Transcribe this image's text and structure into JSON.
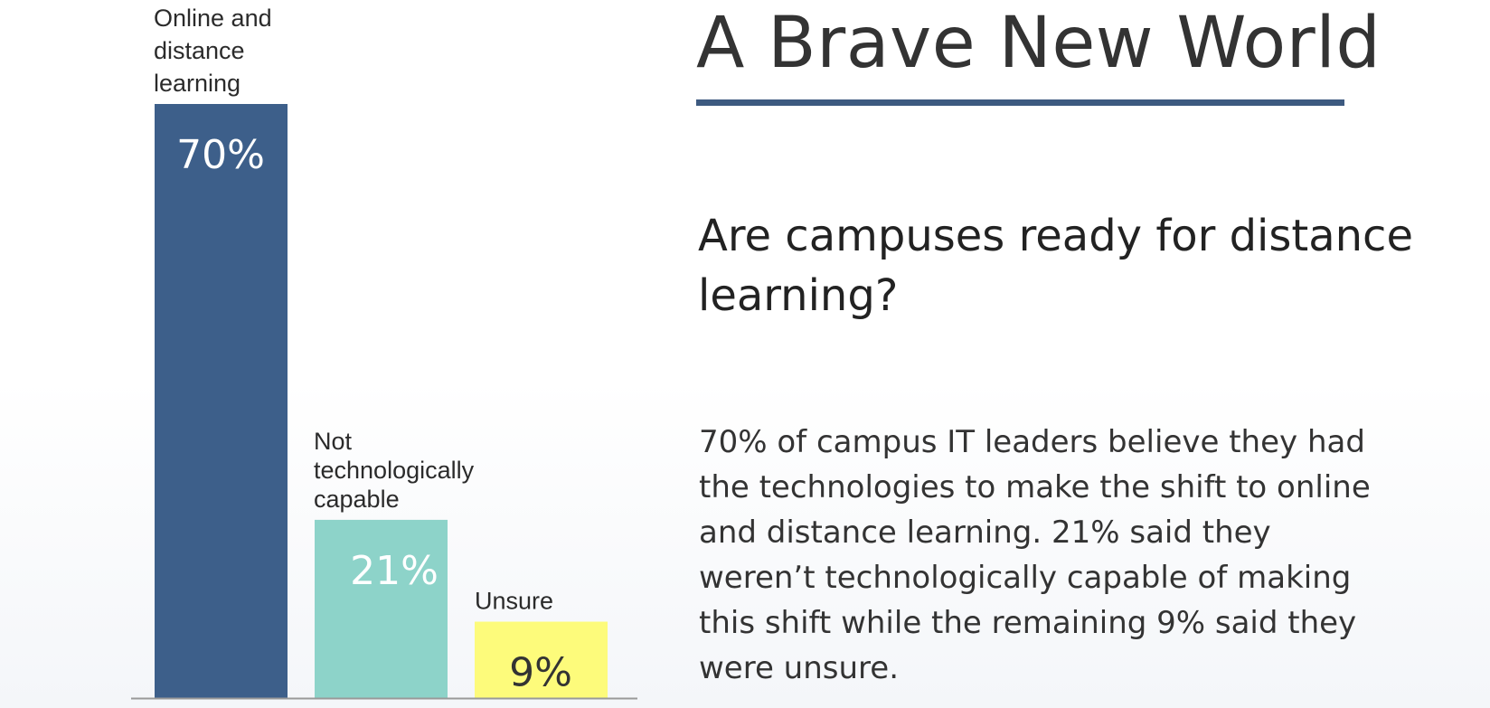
{
  "chart_data": {
    "type": "bar",
    "categories": [
      [
        "Online and",
        "distance",
        "learning"
      ],
      [
        "Not",
        "technologically",
        "capable"
      ],
      [
        "Unsure"
      ]
    ],
    "values": [
      70,
      21,
      9
    ],
    "value_labels": [
      "70%",
      "21%",
      "9%"
    ],
    "colors": [
      "#3d5f8a",
      "#8dd3c9",
      "#fdfb7b"
    ],
    "value_label_colors": [
      "#ffffff",
      "#ffffff",
      "#333333"
    ],
    "ylim": [
      0,
      70
    ],
    "title": "",
    "xlabel": "",
    "ylabel": "",
    "grid": false
  },
  "page": {
    "title": "A Brave New World",
    "question": "Are campuses ready for distance learning?",
    "body": "70% of campus IT leaders believe they had the technologies to make the shift to online and distance learning. 21% said they weren’t technologically capable of making this shift while the remaining 9% said they were unsure."
  }
}
